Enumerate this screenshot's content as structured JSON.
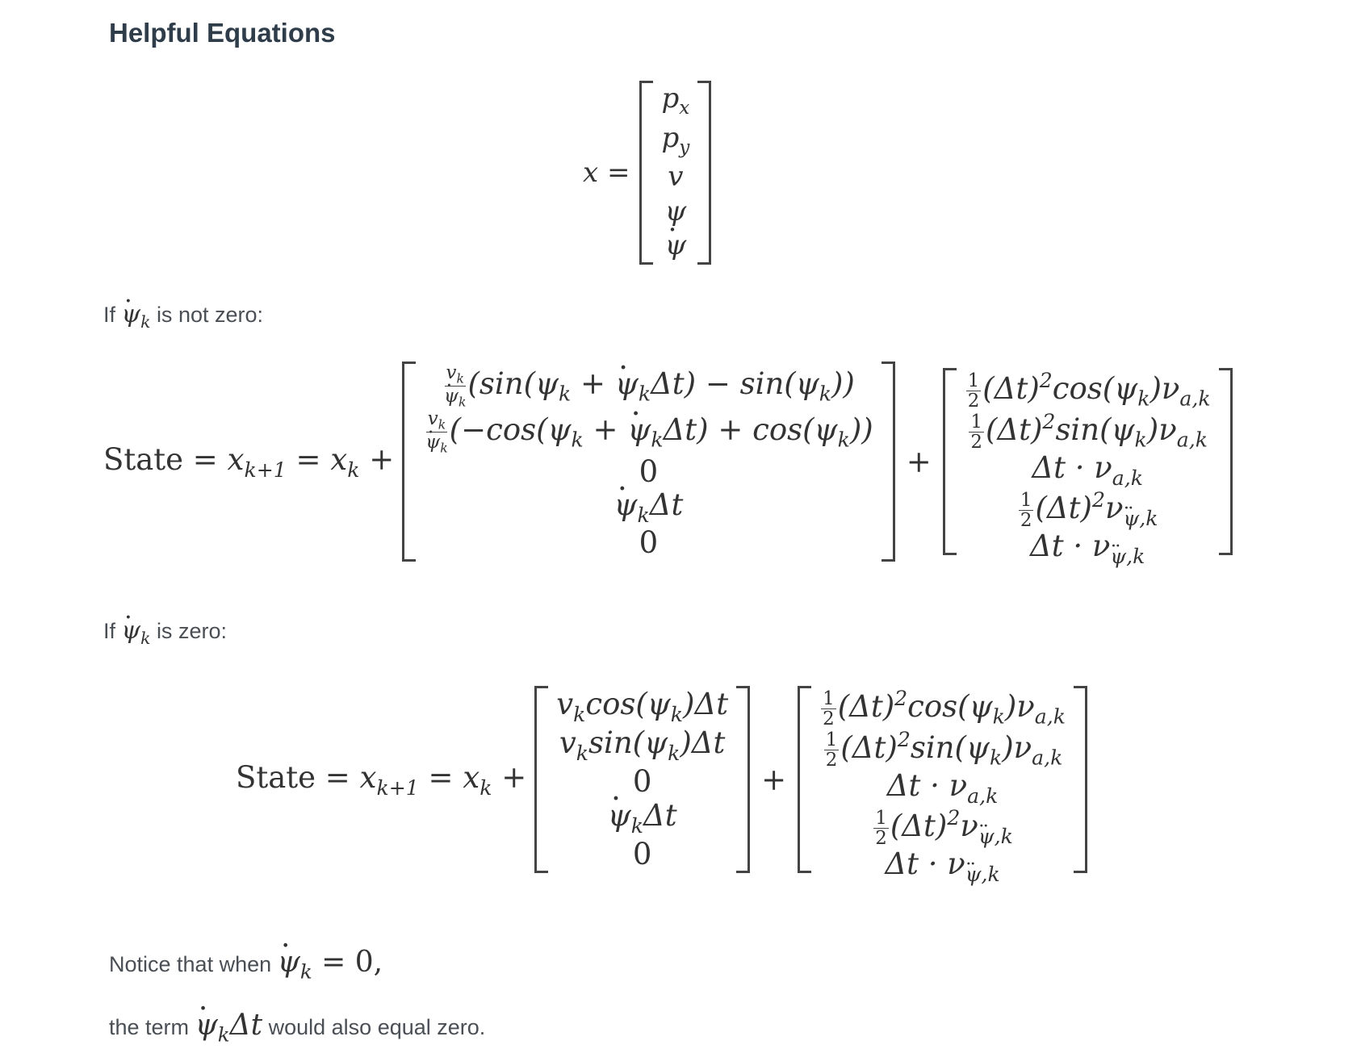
{
  "heading": "Helpful Equations",
  "state_vector": {
    "lhs": "x =",
    "entries": [
      "p_x",
      "p_y",
      "v",
      "ψ",
      "ψ̇"
    ]
  },
  "case_nonzero": {
    "label_prefix": "If",
    "label_suffix": "is not zero:",
    "lhs": "State = x_{k+1} = x_k +",
    "matrix1": [
      "(v_k/ψ̇_k)(sin(ψ_k + ψ̇_kΔt) − sin(ψ_k))",
      "(v_k/ψ̇_k)(−cos(ψ_k + ψ̇_kΔt) + cos(ψ_k))",
      "0",
      "ψ̇_kΔt",
      "0"
    ],
    "plus": "+",
    "matrix2": [
      "½(Δt)²cos(ψ_k)ν_{a,k}",
      "½(Δt)²sin(ψ_k)ν_{a,k}",
      "Δt · ν_{a,k}",
      "½(Δt)²ν_{ψ̈,k}",
      "Δt · ν_{ψ̈,k}"
    ]
  },
  "case_zero": {
    "label_prefix": "If",
    "label_suffix": "is zero:",
    "lhs": "State = x_{k+1} = x_k +",
    "matrix1": [
      "v_k cos(ψ_k)Δt",
      "v_k sin(ψ_k)Δt",
      "0",
      "ψ̇_kΔt",
      "0"
    ],
    "plus": "+",
    "matrix2": [
      "½(Δt)²cos(ψ_k)ν_{a,k}",
      "½(Δt)²sin(ψ_k)ν_{a,k}",
      "Δt · ν_{a,k}",
      "½(Δt)²ν_{ψ̈,k}",
      "Δt · ν_{ψ̈,k}"
    ]
  },
  "notice": {
    "line1_prefix": "Notice that when",
    "line1_math": "= 0,",
    "line2_prefix": "the term",
    "line2_suffix": "would also equal zero."
  }
}
